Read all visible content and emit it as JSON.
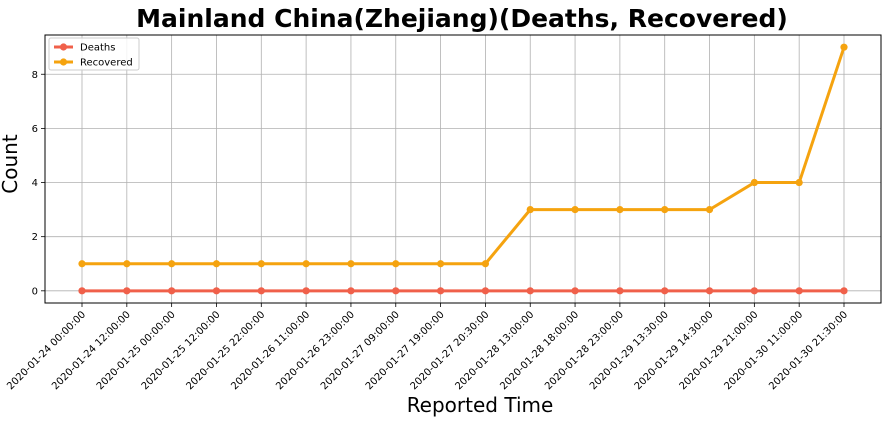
{
  "chart_data": {
    "type": "line",
    "title": "Mainland China(Zhejiang)(Deaths, Recovered)",
    "xlabel": "Reported Time",
    "ylabel": "Count",
    "categories": [
      "2020-01-24 00:00:00",
      "2020-01-24 12:00:00",
      "2020-01-25 00:00:00",
      "2020-01-25 12:00:00",
      "2020-01-25 22:00:00",
      "2020-01-26 11:00:00",
      "2020-01-26 23:00:00",
      "2020-01-27 09:00:00",
      "2020-01-27 19:00:00",
      "2020-01-27 20:30:00",
      "2020-01-28 13:00:00",
      "2020-01-28 18:00:00",
      "2020-01-28 23:00:00",
      "2020-01-29 13:30:00",
      "2020-01-29 14:30:00",
      "2020-01-29 21:00:00",
      "2020-01-30 11:00:00",
      "2020-01-30 21:30:00"
    ],
    "series": [
      {
        "name": "Deaths",
        "color": "#f0604a",
        "values": [
          0,
          0,
          0,
          0,
          0,
          0,
          0,
          0,
          0,
          0,
          0,
          0,
          0,
          0,
          0,
          0,
          0,
          0
        ]
      },
      {
        "name": "Recovered",
        "color": "#f5a30f",
        "values": [
          1,
          1,
          1,
          1,
          1,
          1,
          1,
          1,
          1,
          1,
          3,
          3,
          3,
          3,
          3,
          4,
          4,
          9
        ]
      }
    ],
    "ylim": [
      -0.45,
      9.45
    ],
    "yticks": [
      0,
      2,
      4,
      6,
      8
    ],
    "grid": true,
    "legend_position": "top-left"
  }
}
